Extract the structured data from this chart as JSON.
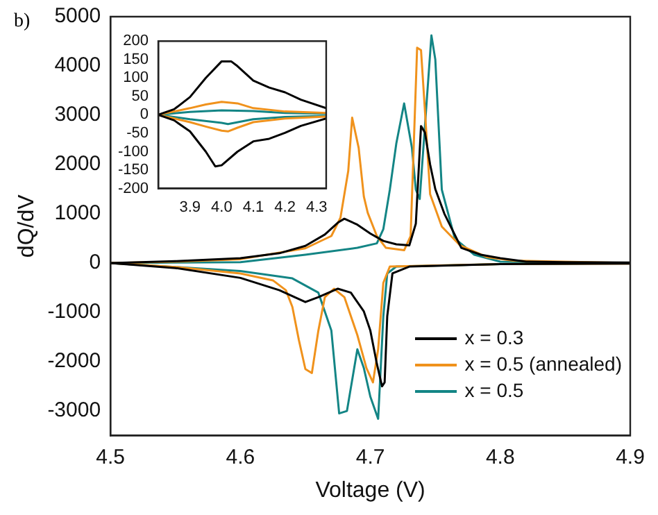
{
  "chart_data": [
    {
      "type": "line",
      "xlabel": "Voltage (V)",
      "ylabel": "dQ/dV",
      "xlim": [
        4.5,
        4.9
      ],
      "ylim": [
        -3500,
        5000
      ],
      "xticks": [
        4.5,
        4.6,
        4.7,
        4.8,
        4.9
      ],
      "yticks": [
        -3000,
        -2000,
        -1000,
        0,
        1000,
        2000,
        3000,
        4000,
        5000
      ],
      "grid": false,
      "legend": "bottom right",
      "marker": "none",
      "line_style": "solid",
      "annotations": [
        "b)"
      ],
      "series": [
        {
          "name": "x = 0.3",
          "color": "#000000",
          "x": [
            4.5,
            4.55,
            4.6,
            4.63,
            4.65,
            4.665,
            4.675,
            4.68,
            4.69,
            4.7,
            4.71,
            4.72,
            4.73,
            4.735,
            4.739,
            4.742,
            4.746,
            4.75,
            4.757,
            4.77,
            4.785,
            4.8,
            4.82,
            4.85,
            4.9
          ],
          "values": [
            0,
            40,
            100,
            200,
            350,
            580,
            820,
            900,
            780,
            600,
            450,
            380,
            360,
            800,
            2780,
            2650,
            2000,
            1500,
            1000,
            310,
            170,
            100,
            30,
            20,
            10
          ]
        },
        {
          "color": "#000000",
          "x": [
            4.5,
            4.55,
            4.6,
            4.63,
            4.65,
            4.66,
            4.675,
            4.685,
            4.695,
            4.7,
            4.705,
            4.709,
            4.711,
            4.713,
            4.717,
            4.73,
            4.8,
            4.9
          ],
          "values": [
            0,
            -100,
            -300,
            -550,
            -790,
            -690,
            -520,
            -600,
            -980,
            -1370,
            -2040,
            -2500,
            -2420,
            -1080,
            -210,
            -70,
            -20,
            -10
          ]
        },
        {
          "name": "x = 0.5 (annealed)",
          "color": "#f0921c",
          "x": [
            4.5,
            4.55,
            4.6,
            4.65,
            4.67,
            4.677,
            4.683,
            4.686,
            4.691,
            4.695,
            4.698,
            4.705,
            4.712,
            4.726,
            4.731,
            4.736,
            4.739,
            4.742,
            4.746,
            4.755,
            4.769,
            4.79,
            4.81,
            4.9
          ],
          "values": [
            0,
            30,
            80,
            300,
            550,
            920,
            1870,
            2950,
            2340,
            1350,
            1020,
            550,
            310,
            260,
            550,
            4370,
            4320,
            3100,
            1400,
            740,
            360,
            120,
            50,
            0
          ]
        },
        {
          "color": "#f0921c",
          "x": [
            4.5,
            4.55,
            4.6,
            4.625,
            4.635,
            4.64,
            4.645,
            4.65,
            4.655,
            4.66,
            4.665,
            4.672,
            4.68,
            4.69,
            4.697,
            4.702,
            4.706,
            4.71,
            4.715,
            4.8,
            4.9
          ],
          "values": [
            0,
            -80,
            -210,
            -350,
            -550,
            -890,
            -1560,
            -2150,
            -2230,
            -1370,
            -690,
            -520,
            -690,
            -1460,
            -2130,
            -2420,
            -1750,
            -400,
            -70,
            -20,
            -10
          ]
        },
        {
          "name": "x = 0.5",
          "color": "#138585",
          "x": [
            4.5,
            4.6,
            4.65,
            4.69,
            4.705,
            4.71,
            4.715,
            4.72,
            4.726,
            4.732,
            4.735,
            4.738,
            4.747,
            4.75,
            4.755,
            4.765,
            4.78,
            4.8,
            4.9
          ],
          "values": [
            0,
            20,
            170,
            310,
            400,
            690,
            1490,
            2430,
            3240,
            2340,
            1490,
            1300,
            4620,
            4130,
            1490,
            500,
            170,
            30,
            0
          ]
        },
        {
          "color": "#138585",
          "x": [
            4.5,
            4.6,
            4.64,
            4.66,
            4.67,
            4.676,
            4.682,
            4.69,
            4.695,
            4.7,
            4.706,
            4.71,
            4.713,
            4.72,
            4.8,
            4.9
          ],
          "values": [
            0,
            -160,
            -310,
            -600,
            -1370,
            -3050,
            -3000,
            -1750,
            -2130,
            -2710,
            -3160,
            -1080,
            -210,
            -70,
            -20,
            0
          ]
        }
      ]
    },
    {
      "type": "line",
      "xlim": [
        3.8,
        4.33
      ],
      "ylim": [
        -200,
        200
      ],
      "xticks": [
        3.9,
        {
          "value": 4.0,
          "label": "4.0"
        },
        4.1,
        4.2,
        4.3
      ],
      "yticks": [
        -200,
        -150,
        -100,
        -50,
        0,
        50,
        100,
        150,
        200
      ],
      "grid": false,
      "marker": "none",
      "line_style": "solid",
      "series": [
        {
          "color": "#000000",
          "x": [
            3.8,
            3.85,
            3.9,
            3.95,
            4.0,
            4.03,
            4.05,
            4.1,
            4.15,
            4.2,
            4.25,
            4.33
          ],
          "values": [
            0,
            15,
            48,
            100,
            145,
            145,
            132,
            93,
            74,
            61,
            41,
            18
          ]
        },
        {
          "color": "#000000",
          "x": [
            3.8,
            3.85,
            3.9,
            3.95,
            3.98,
            4.0,
            4.05,
            4.1,
            4.15,
            4.2,
            4.25,
            4.33
          ],
          "values": [
            0,
            -15,
            -45,
            -100,
            -140,
            -137,
            -100,
            -72,
            -65,
            -49,
            -30,
            -10
          ]
        },
        {
          "color": "#f0921c",
          "x": [
            3.8,
            3.9,
            3.95,
            4.0,
            4.05,
            4.1,
            4.2,
            4.33
          ],
          "values": [
            0,
            18,
            28,
            35,
            31,
            18,
            9,
            5
          ]
        },
        {
          "color": "#f0921c",
          "x": [
            3.8,
            3.9,
            3.95,
            4.0,
            4.02,
            4.05,
            4.1,
            4.2,
            4.33
          ],
          "values": [
            0,
            -20,
            -32,
            -43,
            -45,
            -35,
            -20,
            -10,
            -5
          ]
        },
        {
          "color": "#138585",
          "x": [
            3.8,
            3.9,
            4.0,
            4.1,
            4.2,
            4.33
          ],
          "values": [
            0,
            8,
            12,
            10,
            5,
            3
          ]
        },
        {
          "color": "#138585",
          "x": [
            3.8,
            3.9,
            4.0,
            4.02,
            4.1,
            4.2,
            4.33
          ],
          "values": [
            0,
            -12,
            -22,
            -25,
            -12,
            -6,
            -3
          ]
        }
      ]
    }
  ]
}
